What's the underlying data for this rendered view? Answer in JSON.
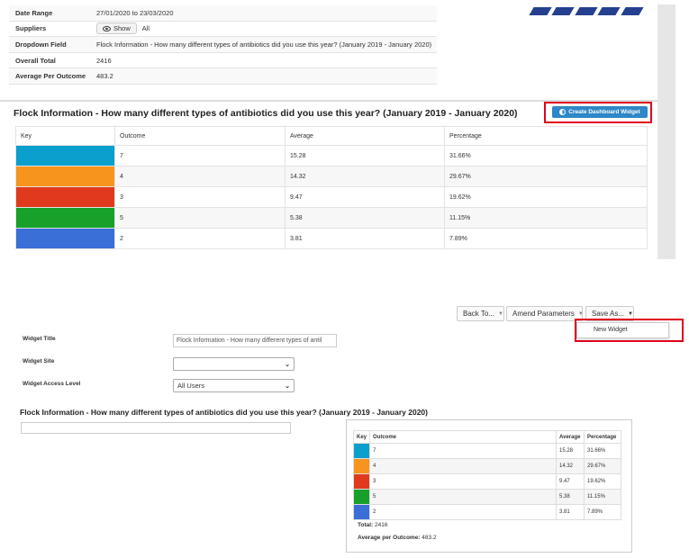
{
  "summary": {
    "rows": [
      {
        "label": "Date Range",
        "value": "27/01/2020 to 23/03/2020"
      },
      {
        "label": "Suppliers",
        "value": "All",
        "button": "Show"
      },
      {
        "label": "Dropdown Field",
        "value": "Flock Information - How many different types of antibiotics did you use this year? (January 2019 - January 2020)"
      },
      {
        "label": "Overall Total",
        "value": "2416"
      },
      {
        "label": "Average Per Outcome",
        "value": "483.2"
      }
    ]
  },
  "report": {
    "title": "Flock Information - How many different types of antibiotics did you use this year? (January 2019 - January 2020)",
    "create_widget_label": "Create Dashboard Widget",
    "columns": [
      "Key",
      "Outcome",
      "Average",
      "Percentage"
    ],
    "rows": [
      {
        "color": "#0a9fcc",
        "outcome": "7",
        "average": "15.28",
        "percentage": "31.66%"
      },
      {
        "color": "#f7941d",
        "outcome": "4",
        "average": "14.32",
        "percentage": "29.67%"
      },
      {
        "color": "#e03a1e",
        "outcome": "3",
        "average": "9.47",
        "percentage": "19.62%"
      },
      {
        "color": "#17a02a",
        "outcome": "5",
        "average": "5.38",
        "percentage": "11.15%"
      },
      {
        "color": "#3a6fd8",
        "outcome": "2",
        "average": "3.81",
        "percentage": "7.89%"
      }
    ]
  },
  "toolbar": {
    "back_label": "Back To...",
    "amend_label": "Amend Parameters",
    "save_label": "Save As...",
    "menu_item": "New Widget"
  },
  "form": {
    "title_label": "Widget Title",
    "title_value": "Flock Information - How many different types of antil",
    "site_label": "Widget Site",
    "site_value": "",
    "access_label": "Widget Access Level",
    "access_value": "All Users"
  },
  "preview": {
    "heading": "Flock Information - How many different types of antibiotics did you use this year? (January 2019 - January 2020)",
    "columns": [
      "Key",
      "Outcome",
      "Average",
      "Percentage"
    ],
    "total_label": "Total:",
    "total_value": "2416",
    "avg_label": "Average per Outcome:",
    "avg_value": "483.2"
  },
  "colors": {
    "accent": "#2e87c7",
    "highlight": "#e0001b",
    "brand": "#25408f"
  }
}
